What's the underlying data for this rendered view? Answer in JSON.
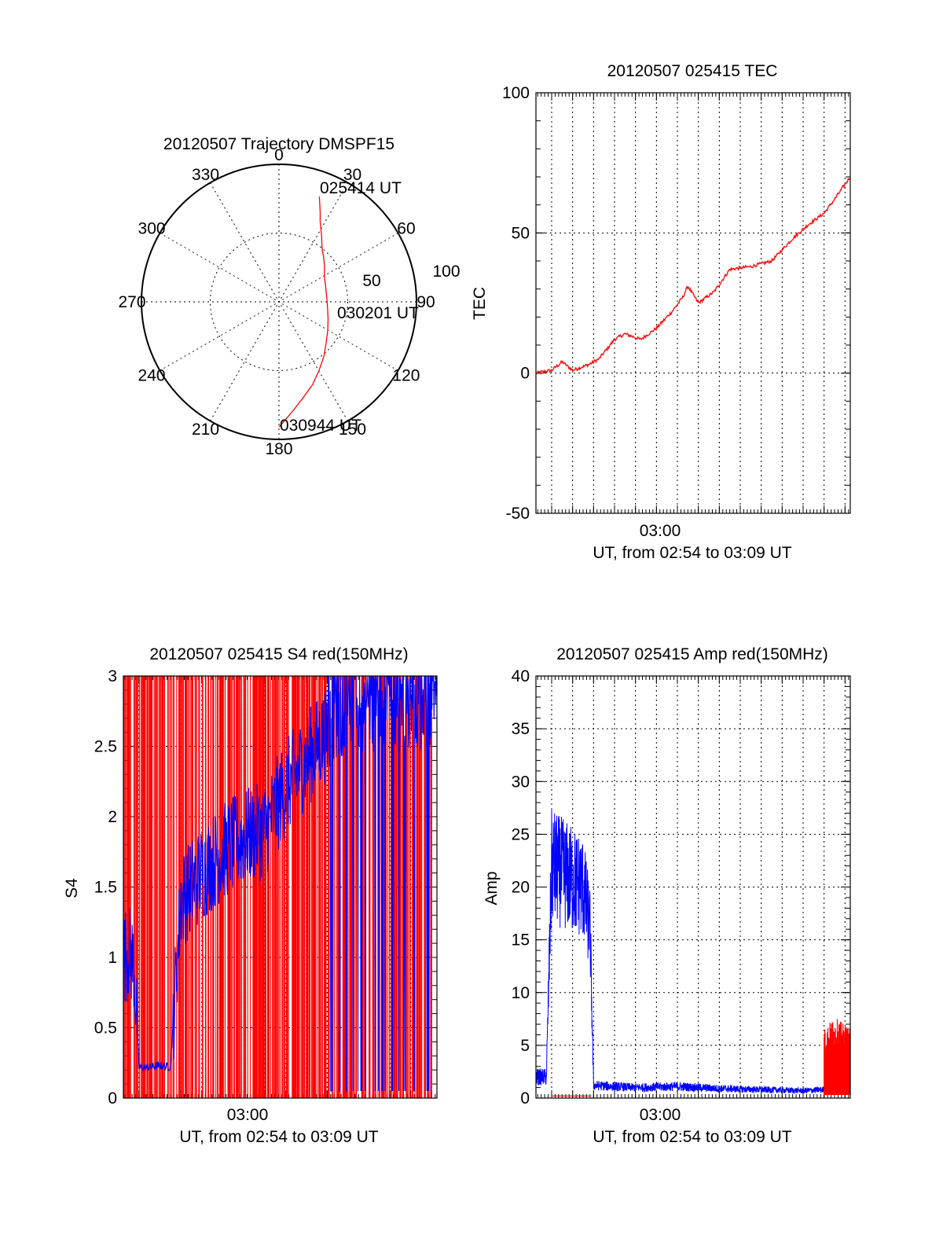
{
  "colors": {
    "red": "#ff0000",
    "blue": "#0000ff",
    "axis": "#000000"
  },
  "chart_data": [
    {
      "id": "polar",
      "type": "scatter",
      "title": "20120507 Trajectory DMSPF15",
      "azimuth_labels": [
        "0",
        "30",
        "60",
        "90",
        "120",
        "150",
        "180",
        "210",
        "240",
        "270",
        "300",
        "330"
      ],
      "radial_labels": [
        "50",
        "100"
      ],
      "annotations": [
        "025414 UT",
        "030201 UT",
        "030944 UT"
      ],
      "series": [
        {
          "color": "red",
          "azimuth_deg": [
            21,
            23,
            25,
            27,
            30,
            33,
            36,
            40,
            45,
            52,
            60,
            70,
            80,
            90,
            100,
            110,
            120,
            130,
            140,
            150,
            158,
            166,
            172,
            177,
            180
          ],
          "zenith_deg": [
            82,
            76,
            71,
            66,
            61,
            57,
            53,
            49,
            46,
            42,
            38,
            36,
            35,
            35,
            36,
            38,
            41,
            45,
            51,
            58,
            65,
            72,
            79,
            86,
            91
          ]
        }
      ]
    },
    {
      "id": "tec",
      "type": "line",
      "title": "20120507 025415 TEC",
      "xlabel": "UT, from 02:54 to 03:09 UT",
      "ylabel": "TEC",
      "x_tick_labels": [
        "03:00"
      ],
      "xlim": [
        "02:54:15",
        "03:09:15"
      ],
      "ylim": [
        -50,
        100
      ],
      "yticks": [
        -50,
        0,
        50,
        100
      ],
      "series": [
        {
          "color": "red",
          "x": [
            "02:54:15",
            "02:55:00",
            "02:55:30",
            "02:56:00",
            "02:56:45",
            "02:57:15",
            "02:58:00",
            "02:58:30",
            "02:59:15",
            "03:00:00",
            "03:00:45",
            "03:01:15",
            "03:01:30",
            "03:02:00",
            "03:02:45",
            "03:03:30",
            "03:04:30",
            "03:05:30",
            "03:06:30",
            "03:07:15",
            "03:08:00",
            "03:08:30",
            "03:09:15"
          ],
          "y": [
            0,
            1,
            4,
            1,
            3,
            5,
            12,
            14,
            12,
            16,
            22,
            27,
            31,
            25,
            29,
            37,
            38,
            40,
            48,
            53,
            57,
            62,
            70
          ]
        }
      ]
    },
    {
      "id": "s4",
      "type": "line",
      "title": "20120507 025415 S4 red(150MHz)",
      "xlabel": "UT, from 02:54 to 03:09 UT",
      "ylabel": "S4",
      "x_tick_labels": [
        "03:00"
      ],
      "xlim": [
        "02:54:15",
        "03:09:15"
      ],
      "ylim": [
        0,
        3
      ],
      "yticks": [
        0,
        0.5,
        1,
        1.5,
        2,
        2.5,
        3
      ],
      "series": [
        {
          "color": "blue",
          "x": [
            "02:54:15",
            "02:54:30",
            "02:54:45",
            "02:55:00",
            "02:55:30",
            "02:56:00",
            "02:56:30",
            "02:57:00",
            "02:58:00",
            "02:59:00",
            "03:00:00",
            "03:01:00",
            "03:02:00",
            "03:03:00",
            "03:04:00",
            "03:05:00"
          ],
          "y": [
            1.0,
            1.05,
            0.95,
            0.22,
            0.22,
            0.23,
            0.22,
            1.4,
            1.6,
            1.75,
            1.85,
            1.9,
            2.2,
            2.4,
            2.6,
            2.8
          ]
        },
        {
          "color": "red",
          "x": [
            "02:54:15",
            "02:56:30",
            "02:57:00",
            "03:01:00",
            "03:02:00",
            "03:03:30",
            "03:05:00",
            "03:07:00",
            "03:09:00"
          ],
          "y": [
            3.0,
            3.0,
            3.0,
            3.0,
            3.0,
            3.0,
            3.0,
            3.0,
            3.0
          ]
        }
      ]
    },
    {
      "id": "amp",
      "type": "line",
      "title": "20120507 025415 Amp red(150MHz)",
      "xlabel": "UT, from 02:54 to 03:09 UT",
      "ylabel": "Amp",
      "x_tick_labels": [
        "03:00"
      ],
      "xlim": [
        "02:54:15",
        "03:09:15"
      ],
      "ylim": [
        0,
        40
      ],
      "yticks": [
        0,
        5,
        10,
        15,
        20,
        25,
        30,
        35,
        40
      ],
      "series": [
        {
          "color": "blue",
          "x": [
            "02:54:15",
            "02:54:45",
            "02:55:00",
            "02:55:45",
            "02:56:30",
            "02:56:50",
            "02:57:00",
            "02:59:00",
            "03:01:00",
            "03:03:00",
            "03:05:00",
            "03:07:00",
            "03:08:00",
            "03:09:15"
          ],
          "y": [
            2,
            2,
            22,
            21,
            20,
            16,
            1.2,
            1.0,
            1.1,
            0.9,
            0.8,
            0.7,
            0.8,
            0.7
          ]
        },
        {
          "color": "red",
          "x": [
            "02:55:00",
            "02:56:50",
            "03:08:00",
            "03:08:30",
            "03:09:15"
          ],
          "y": [
            0.2,
            0.2,
            6,
            7,
            6
          ]
        }
      ]
    }
  ]
}
